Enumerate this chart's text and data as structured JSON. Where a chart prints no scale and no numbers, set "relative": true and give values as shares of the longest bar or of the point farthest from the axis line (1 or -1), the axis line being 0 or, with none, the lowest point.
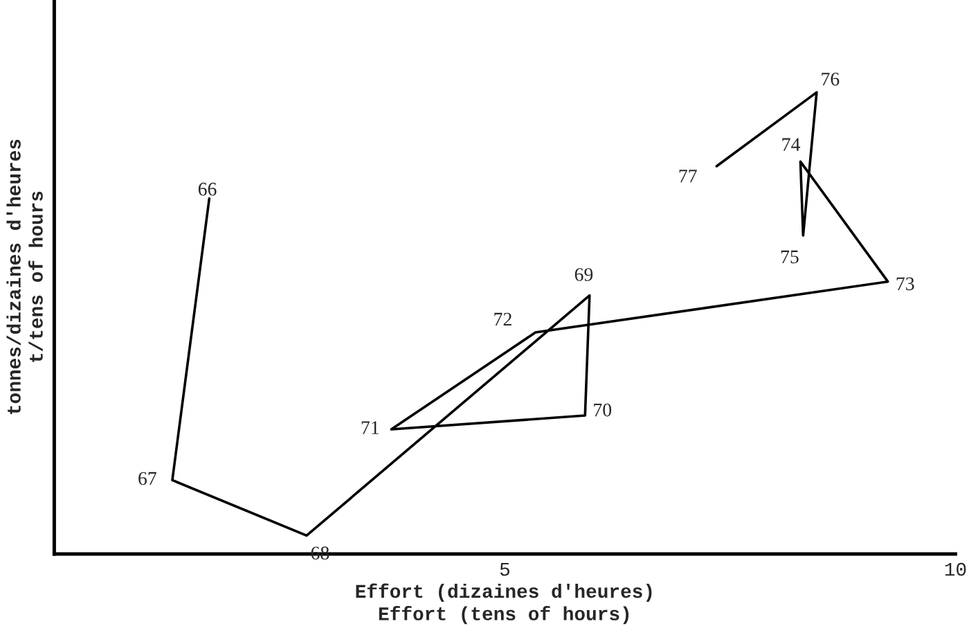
{
  "chart_data": {
    "type": "line",
    "relative": true,
    "xlabel": "Effort (dizaines d'heures)\nEffort (tens of hours)",
    "ylabel": "tonnes/dizaines d'heures\nt/tens of hours",
    "xlim": [
      0,
      10
    ],
    "xticks": [
      5,
      10
    ],
    "x": [
      1.72,
      1.31,
      2.8,
      5.94,
      5.89,
      3.74,
      5.34,
      9.25,
      8.28,
      8.31,
      8.46,
      7.35
    ],
    "series": [
      {
        "color": "#000000",
        "values": [
          0.77,
          0.16,
          0.04,
          0.56,
          0.3,
          0.27,
          0.48,
          0.59,
          0.85,
          0.69,
          1.0,
          0.84
        ]
      }
    ],
    "annotations": [
      {
        "text": "66",
        "x": 1.72,
        "y": 0.77
      },
      {
        "text": "67",
        "x": 1.31,
        "y": 0.16
      },
      {
        "text": "68",
        "x": 2.8,
        "y": 0.04
      },
      {
        "text": "69",
        "x": 5.94,
        "y": 0.56
      },
      {
        "text": "70",
        "x": 5.89,
        "y": 0.3
      },
      {
        "text": "71",
        "x": 3.74,
        "y": 0.27
      },
      {
        "text": "72",
        "x": 5.34,
        "y": 0.48
      },
      {
        "text": "73",
        "x": 9.25,
        "y": 0.59
      },
      {
        "text": "74",
        "x": 8.28,
        "y": 0.85
      },
      {
        "text": "75",
        "x": 8.31,
        "y": 0.69
      },
      {
        "text": "76",
        "x": 8.46,
        "y": 1.0
      },
      {
        "text": "77",
        "x": 7.35,
        "y": 0.84
      }
    ]
  }
}
